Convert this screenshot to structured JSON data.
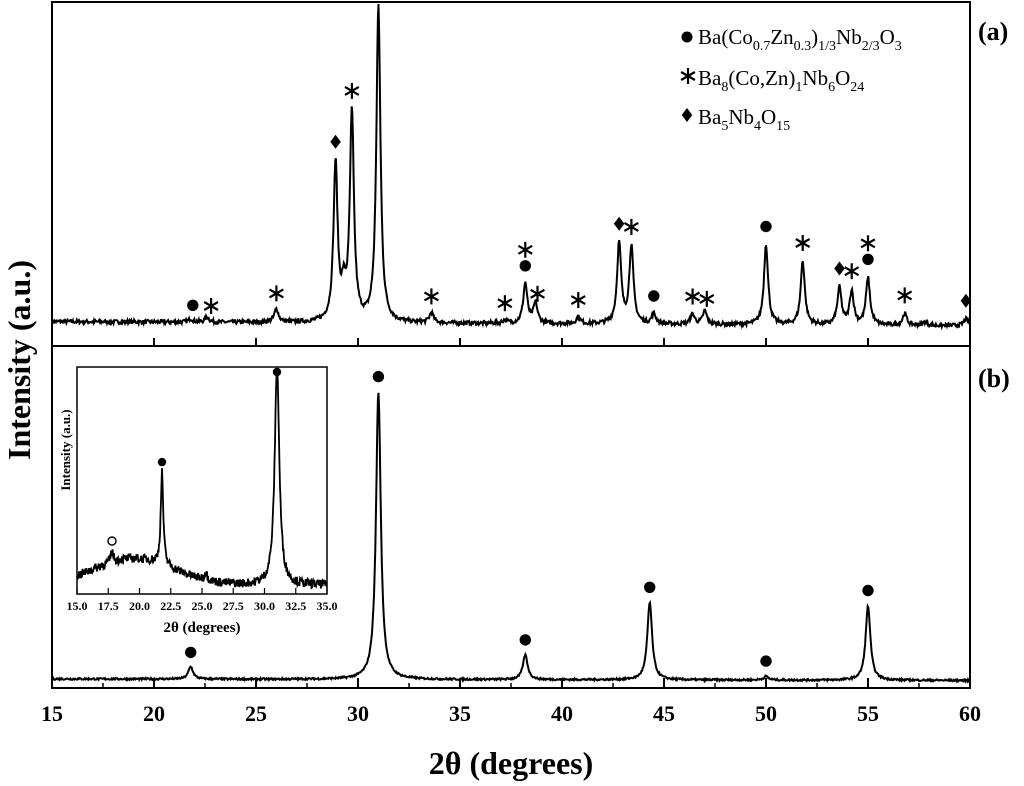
{
  "chart_data": [
    {
      "panel_label": "(a)",
      "type": "line",
      "xlabel": "2θ (degrees)",
      "ylabel": "Intensity (a.u.)",
      "xlim": [
        15,
        60
      ],
      "xticks": [
        "15",
        "20",
        "25",
        "30",
        "35",
        "40",
        "45",
        "50",
        "55",
        "60"
      ],
      "legend_position": "top-right",
      "legend": [
        {
          "marker": "circle",
          "parts": [
            [
              "Ba(Co",
              ""
            ],
            [
              "0.7",
              "sub"
            ],
            [
              "Zn",
              ""
            ],
            [
              "0.3",
              "sub"
            ],
            [
              ")",
              ""
            ],
            [
              "1/3",
              "sub"
            ],
            [
              "Nb",
              ""
            ],
            [
              "2/3",
              "sub"
            ],
            [
              "O",
              ""
            ],
            [
              "3",
              "sub"
            ]
          ]
        },
        {
          "marker": "star",
          "parts": [
            [
              "Ba",
              ""
            ],
            [
              "8",
              "sub"
            ],
            [
              "(Co,Zn)",
              ""
            ],
            [
              "1",
              "sub"
            ],
            [
              "Nb",
              ""
            ],
            [
              "6",
              "sub"
            ],
            [
              "O",
              ""
            ],
            [
              "24",
              "sub"
            ]
          ]
        },
        {
          "marker": "diamond",
          "parts": [
            [
              "Ba",
              ""
            ],
            [
              "5",
              "sub"
            ],
            [
              "Nb",
              ""
            ],
            [
              "4",
              "sub"
            ],
            [
              "O",
              ""
            ],
            [
              "15",
              "sub"
            ]
          ]
        }
      ],
      "baseline": 0.025,
      "peaks": [
        {
          "x": 21.8,
          "y": 0.01,
          "phase": "circle"
        },
        {
          "x": 22.6,
          "y": 0.015,
          "phase": "star"
        },
        {
          "x": 26.0,
          "y": 0.04,
          "phase": "star"
        },
        {
          "x": 28.9,
          "y": 0.47,
          "phase": "diamond"
        },
        {
          "x": 29.3,
          "y": 0.08,
          "phase": ""
        },
        {
          "x": 29.7,
          "y": 0.62,
          "phase": "star"
        },
        {
          "x": 31.0,
          "y": 0.94,
          "phase": "star"
        },
        {
          "x": 33.6,
          "y": 0.03,
          "phase": "star"
        },
        {
          "x": 37.2,
          "y": 0.01,
          "phase": "star"
        },
        {
          "x": 38.2,
          "y": 0.12,
          "phase": "star"
        },
        {
          "x": 38.7,
          "y": 0.06,
          "phase": "star"
        },
        {
          "x": 40.8,
          "y": 0.02,
          "phase": "star"
        },
        {
          "x": 42.8,
          "y": 0.24,
          "phase": "diamond"
        },
        {
          "x": 43.4,
          "y": 0.23,
          "phase": "star"
        },
        {
          "x": 44.5,
          "y": 0.03,
          "phase": "circle"
        },
        {
          "x": 46.4,
          "y": 0.03,
          "phase": "star"
        },
        {
          "x": 47.0,
          "y": 0.04,
          "phase": "star"
        },
        {
          "x": 50.0,
          "y": 0.24,
          "phase": "circle"
        },
        {
          "x": 51.8,
          "y": 0.19,
          "phase": "star"
        },
        {
          "x": 53.6,
          "y": 0.11,
          "phase": "diamond"
        },
        {
          "x": 54.2,
          "y": 0.1,
          "phase": "star"
        },
        {
          "x": 55.0,
          "y": 0.14,
          "phase": "star"
        },
        {
          "x": 56.8,
          "y": 0.035,
          "phase": "star"
        },
        {
          "x": 57.8,
          "y": 0.01,
          "phase": ""
        },
        {
          "x": 59.8,
          "y": 0.02,
          "phase": "diamond"
        }
      ],
      "markers": [
        {
          "x": 21.9,
          "shape": "circle"
        },
        {
          "x": 22.8,
          "shape": "star"
        },
        {
          "x": 26.0,
          "shape": "star"
        },
        {
          "x": 28.9,
          "shape": "diamond"
        },
        {
          "x": 29.7,
          "shape": "star"
        },
        {
          "x": 31.0,
          "shape": "star"
        },
        {
          "x": 31.0,
          "shape": "circle"
        },
        {
          "x": 33.6,
          "shape": "star"
        },
        {
          "x": 37.2,
          "shape": "star"
        },
        {
          "x": 38.2,
          "shape": "circle"
        },
        {
          "x": 38.2,
          "shape": "star"
        },
        {
          "x": 38.8,
          "shape": "star"
        },
        {
          "x": 40.8,
          "shape": "star"
        },
        {
          "x": 42.8,
          "shape": "diamond"
        },
        {
          "x": 43.4,
          "shape": "star"
        },
        {
          "x": 44.5,
          "shape": "circle"
        },
        {
          "x": 46.4,
          "shape": "star"
        },
        {
          "x": 47.1,
          "shape": "star"
        },
        {
          "x": 50.0,
          "shape": "circle"
        },
        {
          "x": 51.8,
          "shape": "star"
        },
        {
          "x": 53.6,
          "shape": "diamond"
        },
        {
          "x": 54.2,
          "shape": "star"
        },
        {
          "x": 55.0,
          "shape": "circle"
        },
        {
          "x": 55.0,
          "shape": "star"
        },
        {
          "x": 56.8,
          "shape": "star"
        },
        {
          "x": 59.8,
          "shape": "diamond"
        }
      ]
    },
    {
      "panel_label": "(b)",
      "type": "line",
      "xlabel": "2θ (degrees)",
      "ylabel": "Intensity (a.u.)",
      "xlim": [
        15,
        60
      ],
      "xticks": [
        "15",
        "20",
        "25",
        "30",
        "35",
        "40",
        "45",
        "50",
        "55",
        "60"
      ],
      "baseline": 0.01,
      "peaks": [
        {
          "x": 21.8,
          "y": 0.04
        },
        {
          "x": 31.0,
          "y": 0.93
        },
        {
          "x": 38.2,
          "y": 0.08
        },
        {
          "x": 44.3,
          "y": 0.25
        },
        {
          "x": 50.0,
          "y": 0.012
        },
        {
          "x": 55.0,
          "y": 0.24
        }
      ],
      "markers": [
        {
          "x": 21.8,
          "shape": "circle"
        },
        {
          "x": 31.0,
          "shape": "circle"
        },
        {
          "x": 38.2,
          "shape": "circle"
        },
        {
          "x": 44.3,
          "shape": "circle"
        },
        {
          "x": 50.0,
          "shape": "circle"
        },
        {
          "x": 55.0,
          "shape": "circle"
        }
      ]
    },
    {
      "panel_label": "inset",
      "type": "line",
      "xlabel": "2θ (degrees)",
      "ylabel": "Intensity (a.u.)",
      "xlim": [
        15,
        35
      ],
      "xticks": [
        "15.0",
        "17.5",
        "20.0",
        "22.5",
        "25.0",
        "27.5",
        "30.0",
        "32.5",
        "35.0"
      ],
      "peaks": [
        {
          "x": 17.8,
          "y": 0.05
        },
        {
          "x": 21.8,
          "y": 0.42
        },
        {
          "x": 25.3,
          "y": 0.04
        },
        {
          "x": 31.0,
          "y": 1.0
        }
      ],
      "markers": [
        {
          "x": 17.8,
          "shape": "open-circle"
        },
        {
          "x": 21.8,
          "shape": "circle"
        },
        {
          "x": 31.0,
          "shape": "circle"
        }
      ]
    }
  ]
}
